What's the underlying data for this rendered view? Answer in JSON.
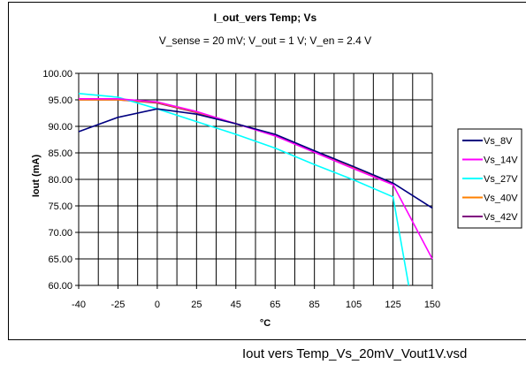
{
  "figure": {
    "file_label": "Iout vers Temp_Vs_20mV_Vout1V.vsd"
  },
  "chart_data": {
    "type": "line",
    "title": "I_out_vers Temp; Vs",
    "subtitle": "V_sense = 20 mV; V_out = 1 V; V_en = 2.4 V",
    "xlabel": "°C",
    "ylabel": "Iout (mA)",
    "x_categories": [
      "-40",
      "-25",
      "0",
      "25",
      "45",
      "65",
      "85",
      "105",
      "125",
      "150"
    ],
    "x_values": [
      -40,
      -25,
      0,
      25,
      45,
      65,
      85,
      105,
      125,
      150
    ],
    "ylim": [
      60,
      100
    ],
    "yticks": [
      "60.00",
      "65.00",
      "70.00",
      "75.00",
      "80.00",
      "85.00",
      "90.00",
      "95.00",
      "100.00"
    ],
    "grid": true,
    "legend_position": "right",
    "series": [
      {
        "name": "Vs_8V",
        "color": "#000080",
        "points": [
          [
            -40,
            89.0
          ],
          [
            -25,
            91.7
          ],
          [
            0,
            93.3
          ],
          [
            25,
            92.3
          ],
          [
            45,
            90.5
          ],
          [
            65,
            88.5
          ],
          [
            85,
            85.4
          ],
          [
            105,
            82.4
          ],
          [
            125,
            79.3
          ],
          [
            150,
            74.6
          ]
        ]
      },
      {
        "name": "Vs_14V",
        "color": "#ff00ff",
        "points": [
          [
            -40,
            95.2
          ],
          [
            -25,
            95.2
          ],
          [
            0,
            94.6
          ],
          [
            25,
            92.8
          ],
          [
            45,
            90.5
          ],
          [
            65,
            88.2
          ],
          [
            85,
            85.1
          ],
          [
            105,
            82.0
          ],
          [
            125,
            79.0
          ],
          [
            150,
            65.0
          ]
        ]
      },
      {
        "name": "Vs_27V",
        "color": "#00ffff",
        "points": [
          [
            -40,
            96.2
          ],
          [
            -25,
            95.5
          ],
          [
            0,
            93.3
          ],
          [
            25,
            90.9
          ],
          [
            45,
            88.5
          ],
          [
            65,
            85.9
          ],
          [
            85,
            82.8
          ],
          [
            105,
            79.9
          ],
          [
            125,
            76.7
          ],
          [
            135,
            60.0
          ]
        ]
      },
      {
        "name": "Vs_40V",
        "color": "#ff8000",
        "points": [
          [
            -40,
            95.0
          ],
          [
            -25,
            95.0
          ],
          [
            0,
            94.5
          ],
          [
            25,
            92.7
          ],
          [
            45,
            90.5
          ],
          [
            65,
            88.4
          ],
          [
            85,
            85.3
          ],
          [
            105,
            82.2
          ],
          [
            125,
            79.1
          ]
        ]
      },
      {
        "name": "Vs_42V",
        "color": "#800080",
        "points": [
          [
            -40,
            95.0
          ],
          [
            -25,
            95.0
          ],
          [
            0,
            94.4
          ],
          [
            25,
            92.6
          ],
          [
            45,
            90.5
          ],
          [
            65,
            88.4
          ],
          [
            85,
            85.3
          ],
          [
            105,
            82.2
          ],
          [
            125,
            79.1
          ]
        ]
      }
    ]
  }
}
